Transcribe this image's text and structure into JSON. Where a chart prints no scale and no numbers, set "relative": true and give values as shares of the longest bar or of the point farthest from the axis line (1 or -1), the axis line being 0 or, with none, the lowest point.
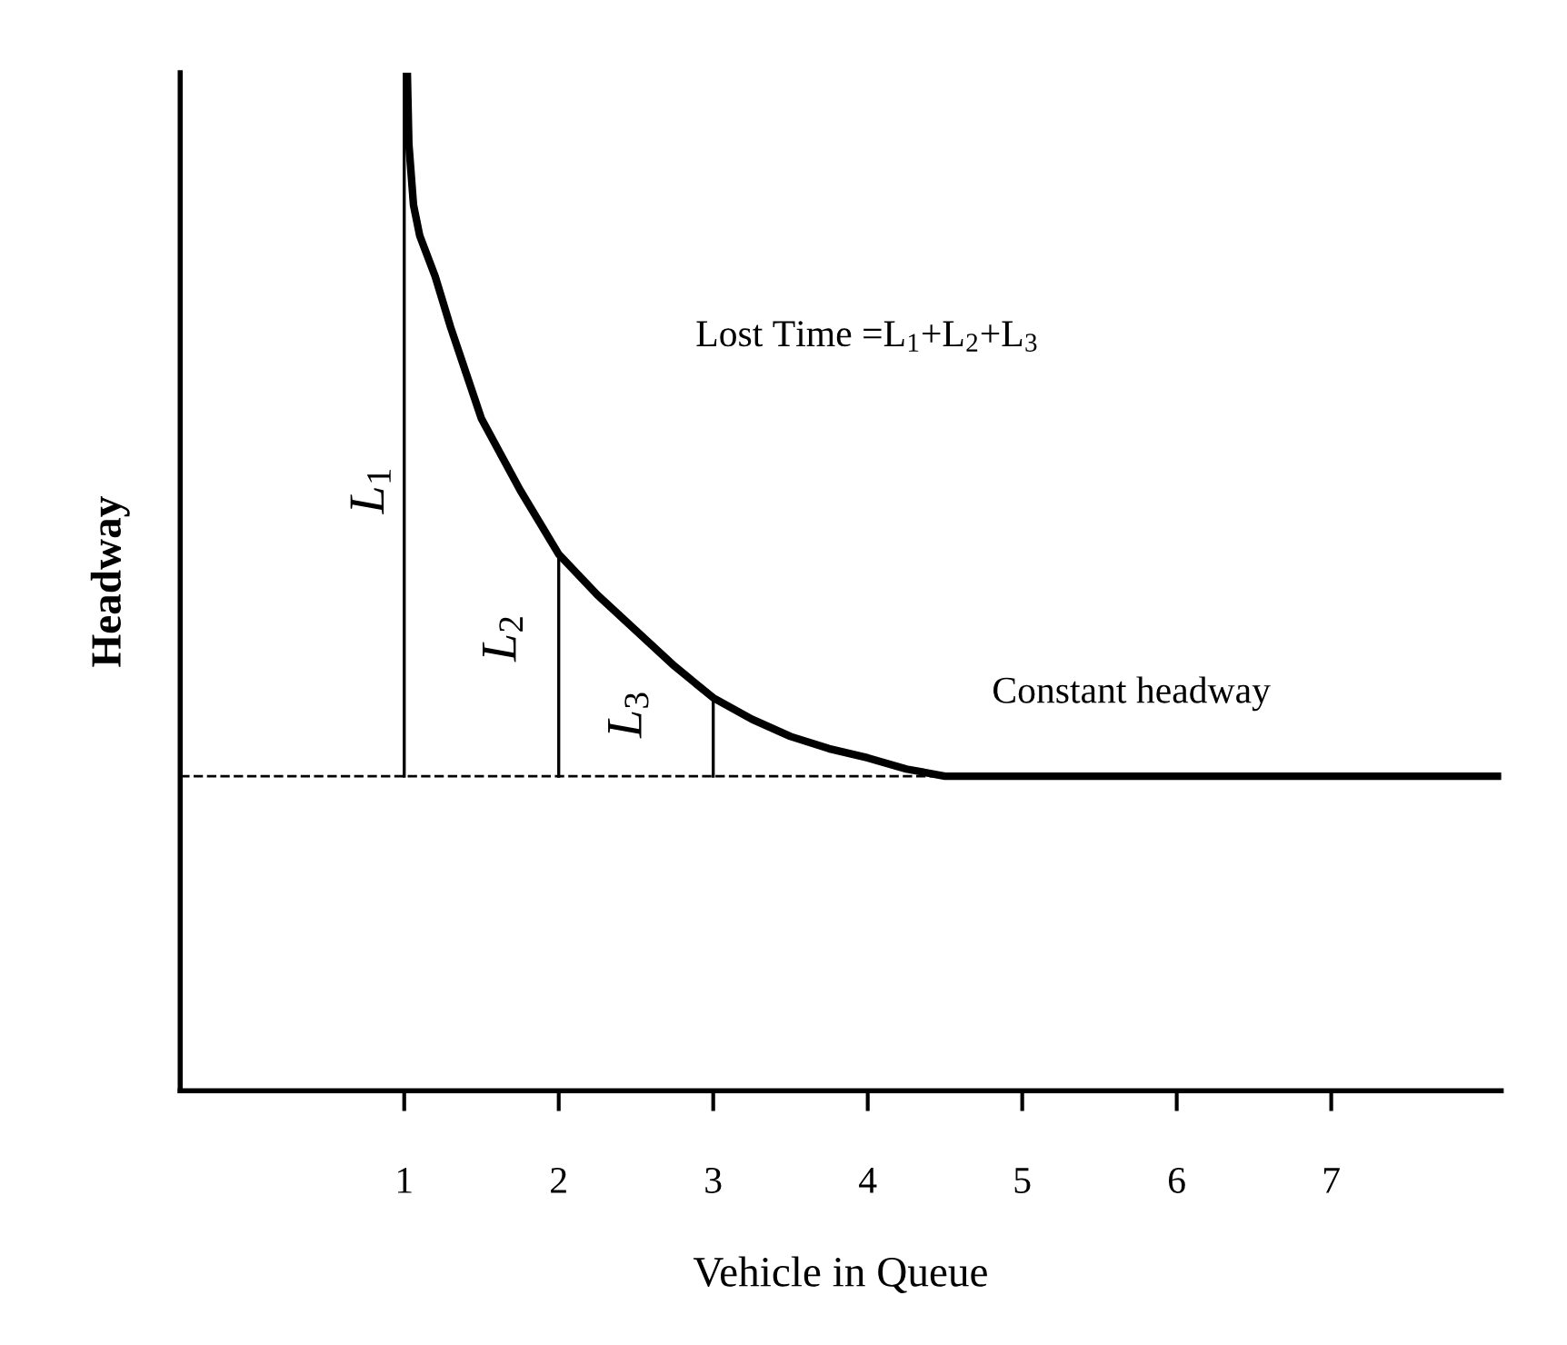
{
  "chart_data": {
    "type": "line",
    "relative": true,
    "xlabel": "Vehicle in Queue",
    "ylabel": "Headway",
    "xlim": [
      -0.45,
      8.1
    ],
    "xticks": [
      1,
      2,
      3,
      4,
      5,
      6,
      7
    ],
    "grid": false,
    "legend": false,
    "marker": "none",
    "line_style": "solid",
    "series": [
      {
        "color": "#000000",
        "x": [
          1.02,
          1.03,
          1.06,
          1.1,
          1.2,
          1.3,
          1.5,
          1.75,
          2,
          2.25,
          2.5,
          2.75,
          3,
          3.25,
          3.5,
          3.75,
          4,
          4.25,
          4.5,
          8.09
        ],
        "values": [
          1.0,
          0.93,
          0.87,
          0.84,
          0.8,
          0.75,
          0.66,
          0.59,
          0.527,
          0.487,
          0.452,
          0.417,
          0.386,
          0.365,
          0.348,
          0.336,
          0.327,
          0.316,
          0.309,
          0.309
        ]
      },
      {
        "type": "line",
        "color": "#000000",
        "x": [
          1,
          1
        ],
        "values": [
          0.309,
          1.0
        ]
      },
      {
        "type": "line",
        "color": "#000000",
        "x": [
          2,
          2
        ],
        "values": [
          0.309,
          0.527
        ]
      },
      {
        "type": "line",
        "color": "#000000",
        "x": [
          3,
          3
        ],
        "values": [
          0.309,
          0.386
        ]
      }
    ],
    "ref_lines": [
      {
        "axis": "y",
        "value": 0.309,
        "color": "#000000",
        "line_style": "dashed"
      }
    ],
    "annotations": [
      "Lost Time =L$_{1}$+L$_{2}$+L$_{3}$",
      "Constant headway",
      "L$_{1}$",
      "L$_{2}$",
      "L$_{3}$"
    ]
  }
}
